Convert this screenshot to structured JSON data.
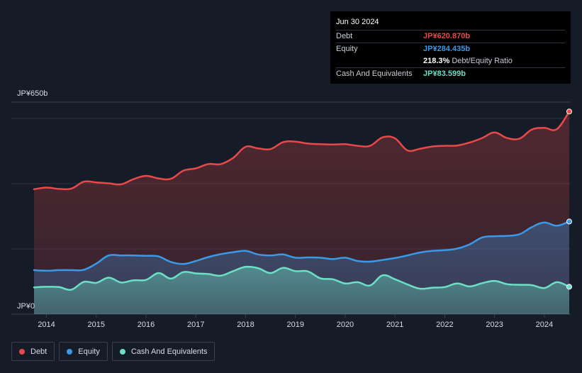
{
  "colors": {
    "debt": "#e84a4a",
    "equity": "#3b9ae8",
    "cash": "#6be0c6",
    "grid": "#2a303c",
    "background": "#151b27"
  },
  "tooltip": {
    "date": "Jun 30 2024",
    "debt_label": "Debt",
    "debt_value": "JP¥620.870b",
    "equity_label": "Equity",
    "equity_value": "JP¥284.435b",
    "ratio_value": "218.3%",
    "ratio_label": "Debt/Equity Ratio",
    "cash_label": "Cash And Equivalents",
    "cash_value": "JP¥83.599b"
  },
  "legend": {
    "debt": "Debt",
    "equity": "Equity",
    "cash": "Cash And Equivalents"
  },
  "chart_data": {
    "type": "area",
    "title": "",
    "xlabel": "",
    "ylabel": "",
    "y_top_label": "JP¥650b",
    "y_bottom_label": "JP¥0",
    "ylim": [
      0,
      650
    ],
    "xlim": [
      2013.75,
      2024.5
    ],
    "x_ticks": [
      "2014",
      "2015",
      "2016",
      "2017",
      "2018",
      "2019",
      "2020",
      "2021",
      "2022",
      "2023",
      "2024"
    ],
    "series": [
      {
        "name": "Debt",
        "x": [
          2013.75,
          2014.0,
          2014.25,
          2014.5,
          2014.75,
          2015.0,
          2015.25,
          2015.5,
          2015.75,
          2016.0,
          2016.25,
          2016.5,
          2016.75,
          2017.0,
          2017.25,
          2017.5,
          2017.75,
          2018.0,
          2018.25,
          2018.5,
          2018.75,
          2019.0,
          2019.25,
          2019.5,
          2019.75,
          2020.0,
          2020.25,
          2020.5,
          2020.75,
          2021.0,
          2021.25,
          2021.5,
          2021.75,
          2022.0,
          2022.25,
          2022.5,
          2022.75,
          2023.0,
          2023.25,
          2023.5,
          2023.75,
          2024.0,
          2024.25,
          2024.5
        ],
        "values": [
          383,
          388,
          384,
          385,
          406,
          404,
          401,
          398,
          414,
          424,
          416,
          415,
          440,
          447,
          460,
          460,
          479,
          513,
          508,
          506,
          527,
          529,
          523,
          521,
          520,
          521,
          516,
          516,
          542,
          539,
          502,
          507,
          514,
          516,
          517,
          526,
          540,
          557,
          540,
          538,
          566,
          571,
          567,
          621
        ]
      },
      {
        "name": "Equity",
        "x": [
          2013.75,
          2014.0,
          2014.25,
          2014.5,
          2014.75,
          2015.0,
          2015.25,
          2015.5,
          2015.75,
          2016.0,
          2016.25,
          2016.5,
          2016.75,
          2017.0,
          2017.25,
          2017.5,
          2017.75,
          2018.0,
          2018.25,
          2018.5,
          2018.75,
          2019.0,
          2019.25,
          2019.5,
          2019.75,
          2020.0,
          2020.25,
          2020.5,
          2020.75,
          2021.0,
          2021.25,
          2021.5,
          2021.75,
          2022.0,
          2022.25,
          2022.5,
          2022.75,
          2023.0,
          2023.25,
          2023.5,
          2023.75,
          2024.0,
          2024.25,
          2024.5
        ],
        "values": [
          135,
          133,
          135,
          135,
          136,
          155,
          180,
          180,
          180,
          179,
          177,
          160,
          154,
          163,
          175,
          184,
          190,
          194,
          183,
          180,
          183,
          173,
          174,
          173,
          169,
          173,
          163,
          161,
          166,
          172,
          180,
          189,
          194,
          196,
          201,
          214,
          235,
          239,
          240,
          245,
          267,
          281,
          271,
          284
        ]
      },
      {
        "name": "Cash And Equivalents",
        "x": [
          2013.75,
          2014.0,
          2014.25,
          2014.5,
          2014.75,
          2015.0,
          2015.25,
          2015.5,
          2015.75,
          2016.0,
          2016.25,
          2016.5,
          2016.75,
          2017.0,
          2017.25,
          2017.5,
          2017.75,
          2018.0,
          2018.25,
          2018.5,
          2018.75,
          2019.0,
          2019.25,
          2019.5,
          2019.75,
          2020.0,
          2020.25,
          2020.5,
          2020.75,
          2021.0,
          2021.25,
          2021.5,
          2021.75,
          2022.0,
          2022.25,
          2022.5,
          2022.75,
          2023.0,
          2023.25,
          2023.5,
          2023.75,
          2024.0,
          2024.25,
          2024.5
        ],
        "values": [
          82,
          84,
          83,
          75,
          99,
          96,
          112,
          97,
          104,
          105,
          126,
          109,
          129,
          125,
          123,
          118,
          132,
          145,
          141,
          126,
          142,
          132,
          131,
          110,
          107,
          94,
          98,
          88,
          119,
          107,
          91,
          78,
          81,
          83,
          94,
          85,
          95,
          102,
          92,
          90,
          89,
          80,
          98,
          84
        ]
      }
    ]
  }
}
